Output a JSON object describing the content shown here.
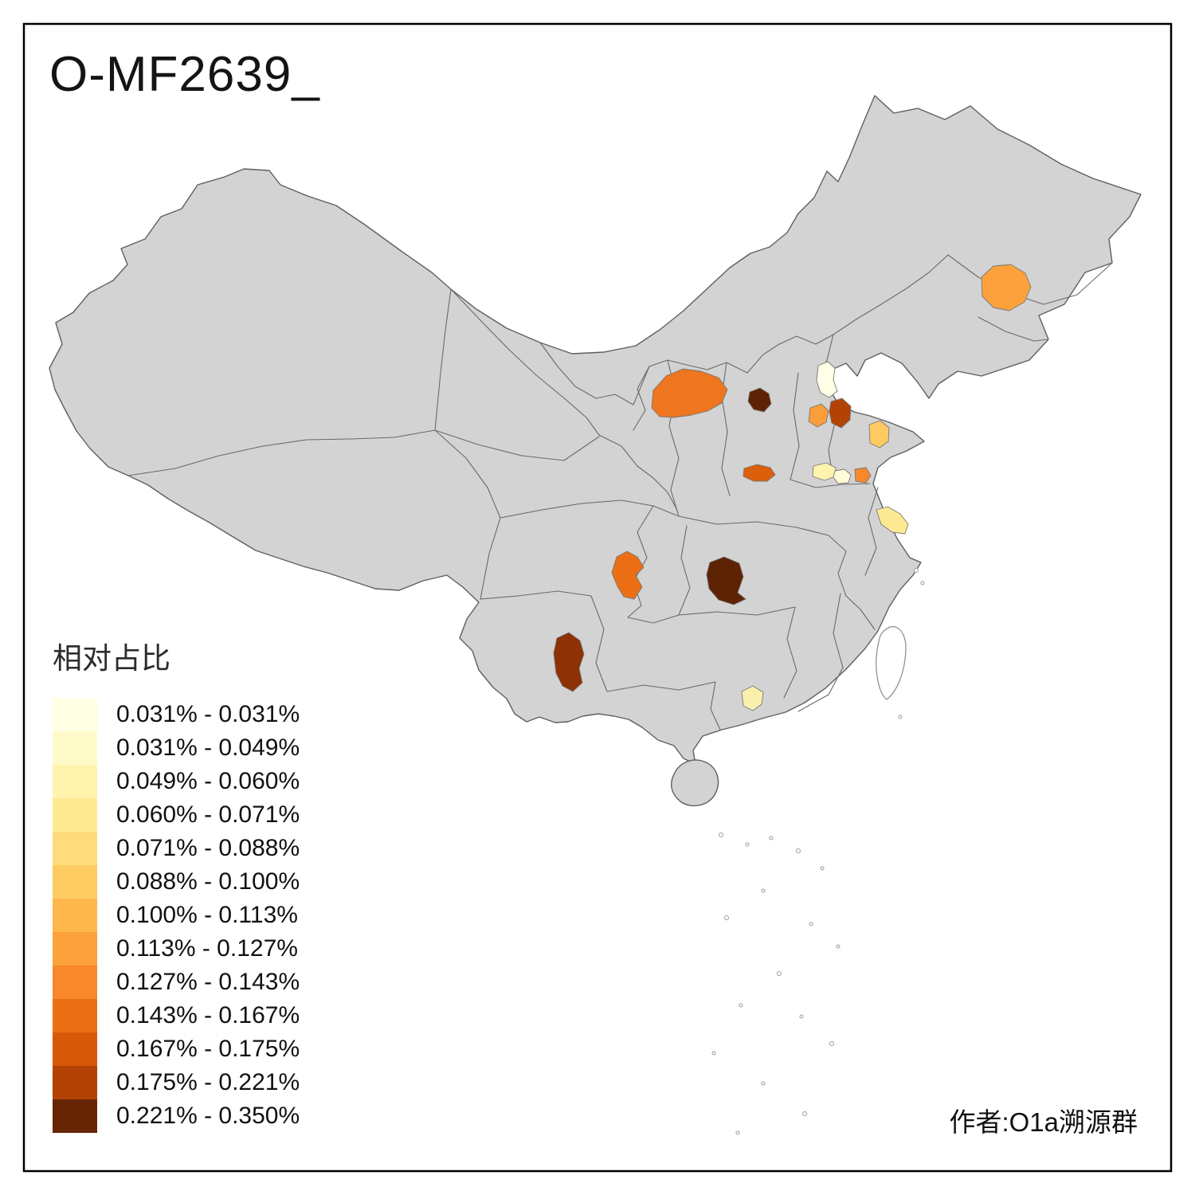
{
  "title": "O-MF2639_",
  "attribution": "作者:O1a溯源群",
  "legend": {
    "title": "相对占比",
    "items": [
      {
        "label": "0.031% - 0.031%",
        "color": "#FFFFE5"
      },
      {
        "label": "0.031% - 0.049%",
        "color": "#FFFAC9"
      },
      {
        "label": "0.049% - 0.060%",
        "color": "#FFF3AE"
      },
      {
        "label": "0.060% - 0.071%",
        "color": "#FEE993"
      },
      {
        "label": "0.071% - 0.088%",
        "color": "#FEDC7B"
      },
      {
        "label": "0.088% - 0.100%",
        "color": "#FECB62"
      },
      {
        "label": "0.100% - 0.113%",
        "color": "#FEB74D"
      },
      {
        "label": "0.113% - 0.127%",
        "color": "#FDA13C"
      },
      {
        "label": "0.127% - 0.143%",
        "color": "#F8882B"
      },
      {
        "label": "0.143% - 0.167%",
        "color": "#EC6F15"
      },
      {
        "label": "0.167% - 0.175%",
        "color": "#D85809"
      },
      {
        "label": "0.175% - 0.221%",
        "color": "#B24304"
      },
      {
        "label": "0.221% - 0.350%",
        "color": "#662605"
      }
    ]
  },
  "map": {
    "land_color": "#D3D3D3",
    "border_color": "#6A6A6A",
    "sea_color": "#FFFFFF",
    "frame_color": "#000000",
    "regions": {
      "northeast_orange": {
        "bin": "0.113% - 0.127%",
        "color": "#FDA13C"
      },
      "ordos_orange": {
        "bin": "0.143% - 0.167%",
        "color": "#EE761E"
      },
      "beijing_pale": {
        "bin": "0.031% - 0.031%",
        "color": "#FFFEE6"
      },
      "hebei_dark": {
        "bin": "0.221% - 0.350%",
        "color": "#5E2205"
      },
      "hebei_mid_orange": {
        "bin": "0.113% - 0.127%",
        "color": "#FB9D3A"
      },
      "hebei_east_red": {
        "bin": "0.175% - 0.221%",
        "color": "#B24304"
      },
      "shandong_peninsula_light": {
        "bin": "0.088% - 0.100%",
        "color": "#FECB62"
      },
      "shaanxi_red": {
        "bin": "0.167% - 0.175%",
        "color": "#DC5F0C"
      },
      "henan_pale_yellow": {
        "bin": "0.049% - 0.060%",
        "color": "#FFF3AE"
      },
      "henan_white": {
        "bin": "0.031% - 0.049%",
        "color": "#FFFBD6"
      },
      "henan_orange_small": {
        "bin": "0.127% - 0.143%",
        "color": "#F8882B"
      },
      "jiangsu_yellow": {
        "bin": "0.060% - 0.071%",
        "color": "#FEE993"
      },
      "chongqing_orange": {
        "bin": "0.143% - 0.167%",
        "color": "#EC6F15"
      },
      "hubei_dark": {
        "bin": "0.221% - 0.350%",
        "color": "#5E2205"
      },
      "yunnan_dark": {
        "bin": "0.175% - 0.221%",
        "color": "#8E3104"
      },
      "guangdong_pale": {
        "bin": "0.049% - 0.060%",
        "color": "#FBEFAE"
      }
    }
  }
}
